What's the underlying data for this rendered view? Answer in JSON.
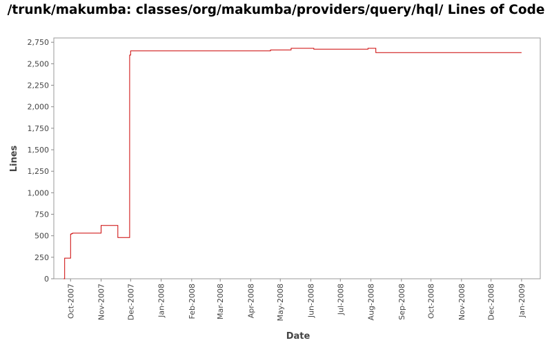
{
  "chart_data": {
    "type": "line",
    "title": "/trunk/makumba: classes/org/makumba/providers/query/hql/ Lines of Code",
    "xlabel": "Date",
    "ylabel": "Lines",
    "ylim": [
      0,
      2800
    ],
    "yticks": [
      0,
      250,
      500,
      750,
      1000,
      1250,
      1500,
      1750,
      2000,
      2250,
      2500,
      2750
    ],
    "ytick_labels": [
      "0",
      "250",
      "500",
      "750",
      "1,000",
      "1,250",
      "1,500",
      "1,750",
      "2,000",
      "2,250",
      "2,500",
      "2,750"
    ],
    "xlim": [
      "2007-09-14",
      "2009-01-20"
    ],
    "xticks": [
      "2007-10-01",
      "2007-11-01",
      "2007-12-01",
      "2008-01-01",
      "2008-02-01",
      "2008-03-01",
      "2008-04-01",
      "2008-05-01",
      "2008-06-01",
      "2008-07-01",
      "2008-08-01",
      "2008-09-01",
      "2008-10-01",
      "2008-11-01",
      "2008-12-01",
      "2009-01-01"
    ],
    "xtick_labels": [
      "Oct-2007",
      "Nov-2007",
      "Dec-2007",
      "Jan-2008",
      "Feb-2008",
      "Mar-2008",
      "Apr-2008",
      "May-2008",
      "Jun-2008",
      "Jul-2008",
      "Aug-2008",
      "Sep-2008",
      "Oct-2008",
      "Nov-2008",
      "Dec-2008",
      "Jan-2009"
    ],
    "grid": false,
    "step": true,
    "series": [
      {
        "color": "#cc0000",
        "points": [
          [
            "2007-09-24",
            0
          ],
          [
            "2007-09-25",
            240
          ],
          [
            "2007-10-01",
            520
          ],
          [
            "2007-10-02",
            525
          ],
          [
            "2007-10-03",
            530
          ],
          [
            "2007-11-01",
            620
          ],
          [
            "2007-11-18",
            480
          ],
          [
            "2007-11-30",
            2600
          ],
          [
            "2007-12-01",
            2650
          ],
          [
            "2008-04-21",
            2660
          ],
          [
            "2008-05-12",
            2680
          ],
          [
            "2008-06-04",
            2670
          ],
          [
            "2008-07-29",
            2680
          ],
          [
            "2008-08-06",
            2630
          ],
          [
            "2009-01-01",
            2630
          ]
        ]
      }
    ]
  }
}
